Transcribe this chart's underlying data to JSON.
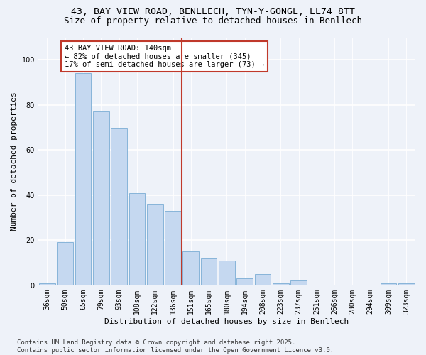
{
  "title_line1": "43, BAY VIEW ROAD, BENLLECH, TYN-Y-GONGL, LL74 8TT",
  "title_line2": "Size of property relative to detached houses in Benllech",
  "xlabel": "Distribution of detached houses by size in Benllech",
  "ylabel": "Number of detached properties",
  "categories": [
    "36sqm",
    "50sqm",
    "65sqm",
    "79sqm",
    "93sqm",
    "108sqm",
    "122sqm",
    "136sqm",
    "151sqm",
    "165sqm",
    "180sqm",
    "194sqm",
    "208sqm",
    "223sqm",
    "237sqm",
    "251sqm",
    "266sqm",
    "280sqm",
    "294sqm",
    "309sqm",
    "323sqm"
  ],
  "values": [
    1,
    19,
    94,
    77,
    70,
    41,
    36,
    33,
    15,
    12,
    11,
    3,
    5,
    1,
    2,
    0,
    0,
    0,
    0,
    1,
    1
  ],
  "bar_color": "#c5d8f0",
  "bar_edgecolor": "#7aadd4",
  "vline_x_index": 7,
  "vline_color": "#c0392b",
  "annotation_text": "43 BAY VIEW ROAD: 140sqm\n← 82% of detached houses are smaller (345)\n17% of semi-detached houses are larger (73) →",
  "annotation_box_edgecolor": "#c0392b",
  "annotation_fontsize": 7.5,
  "ylim": [
    0,
    110
  ],
  "yticks": [
    0,
    20,
    40,
    60,
    80,
    100
  ],
  "background_color": "#eef2f9",
  "footer_text": "Contains HM Land Registry data © Crown copyright and database right 2025.\nContains public sector information licensed under the Open Government Licence v3.0.",
  "title_fontsize": 9.5,
  "subtitle_fontsize": 9,
  "axis_label_fontsize": 8,
  "tick_fontsize": 7,
  "footer_fontsize": 6.5
}
